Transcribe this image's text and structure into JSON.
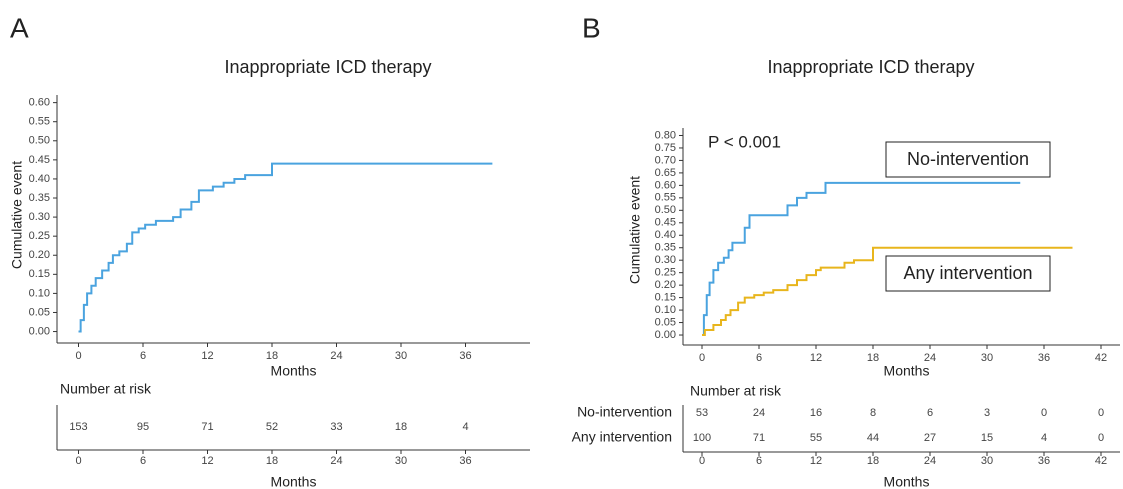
{
  "chart_data": [
    {
      "type": "line",
      "panel": "A",
      "title": "Inappropriate ICD therapy",
      "xlabel": "Months",
      "ylabel": "Cumulative event",
      "xlim": [
        -2,
        42
      ],
      "ylim": [
        -0.03,
        0.62
      ],
      "xticks": [
        0,
        6,
        12,
        18,
        24,
        30,
        36
      ],
      "yticks": [
        {
          "value": 0,
          "label": "0.00"
        },
        {
          "value": 0.05,
          "label": "0.05"
        },
        {
          "value": 0.1,
          "label": "0.10"
        },
        {
          "value": 0.15,
          "label": "0.15"
        },
        {
          "value": 0.2,
          "label": "0.20"
        },
        {
          "value": 0.25,
          "label": "0.25"
        },
        {
          "value": 0.3,
          "label": "0.30"
        },
        {
          "value": 0.35,
          "label": "0.35"
        },
        {
          "value": 0.4,
          "label": "0.40"
        },
        {
          "value": 0.45,
          "label": "0.45"
        },
        {
          "value": 0.5,
          "label": "0.50"
        },
        {
          "value": 0.55,
          "label": "0.55"
        },
        {
          "value": 0.6,
          "label": "0.60"
        }
      ],
      "series": [
        {
          "color": "#4aa3df",
          "x": [
            0,
            0.2,
            0.5,
            0.8,
            1.2,
            1.6,
            2.2,
            2.8,
            3.2,
            3.8,
            4.5,
            5,
            5.6,
            6.2,
            7.2,
            8.8,
            9.5,
            10.5,
            11.2,
            12.5,
            13.5,
            14.5,
            15.5,
            17.5,
            18,
            38.5
          ],
          "values": [
            0,
            0.03,
            0.07,
            0.1,
            0.12,
            0.14,
            0.16,
            0.18,
            0.2,
            0.21,
            0.23,
            0.26,
            0.27,
            0.28,
            0.29,
            0.3,
            0.32,
            0.34,
            0.37,
            0.38,
            0.39,
            0.4,
            0.41,
            0.41,
            0.44,
            0.44
          ]
        }
      ],
      "risk_table": {
        "title": "Number at risk",
        "xlabel": "Months",
        "xticks": [
          0,
          6,
          12,
          18,
          24,
          30,
          36
        ],
        "rows": [
          {
            "values": [
              153,
              95,
              71,
              52,
              33,
              18,
              4
            ]
          }
        ]
      }
    },
    {
      "type": "line",
      "panel": "B",
      "title": "Inappropriate ICD therapy",
      "xlabel": "Months",
      "ylabel": "Cumulative event",
      "annotation": "P < 0.001",
      "xlim": [
        -2,
        44
      ],
      "ylim": [
        -0.04,
        0.83
      ],
      "xticks": [
        0,
        6,
        12,
        18,
        24,
        30,
        36,
        42
      ],
      "yticks": [
        {
          "value": 0,
          "label": "0.00"
        },
        {
          "value": 0.05,
          "label": "0.05"
        },
        {
          "value": 0.1,
          "label": "0.10"
        },
        {
          "value": 0.15,
          "label": "0.15"
        },
        {
          "value": 0.2,
          "label": "0.20"
        },
        {
          "value": 0.25,
          "label": "0.25"
        },
        {
          "value": 0.3,
          "label": "0.30"
        },
        {
          "value": 0.35,
          "label": "0.35"
        },
        {
          "value": 0.4,
          "label": "0.40"
        },
        {
          "value": 0.45,
          "label": "0.45"
        },
        {
          "value": 0.5,
          "label": "0.50"
        },
        {
          "value": 0.55,
          "label": "0.55"
        },
        {
          "value": 0.6,
          "label": "0.60"
        },
        {
          "value": 0.65,
          "label": "0.65"
        },
        {
          "value": 0.7,
          "label": "0.70"
        },
        {
          "value": 0.75,
          "label": "0.75"
        },
        {
          "value": 0.8,
          "label": "0.80"
        }
      ],
      "series": [
        {
          "name": "No-intervention",
          "color": "#4aa3df",
          "x": [
            0,
            0.2,
            0.5,
            0.8,
            1.2,
            1.7,
            2.3,
            2.8,
            3.2,
            4.5,
            5,
            9,
            10,
            11,
            13,
            33.5
          ],
          "values": [
            0,
            0.08,
            0.16,
            0.21,
            0.26,
            0.29,
            0.31,
            0.34,
            0.37,
            0.43,
            0.48,
            0.52,
            0.55,
            0.57,
            0.61,
            0.61
          ]
        },
        {
          "name": "Any intervention",
          "color": "#e8b51c",
          "x": [
            0,
            0.3,
            1.2,
            2,
            2.5,
            3,
            3.8,
            4.5,
            5.5,
            6.5,
            7.5,
            9,
            10,
            11,
            12,
            12.5,
            15,
            16,
            18,
            39
          ],
          "values": [
            0,
            0.02,
            0.04,
            0.06,
            0.08,
            0.1,
            0.13,
            0.15,
            0.16,
            0.17,
            0.18,
            0.2,
            0.22,
            0.24,
            0.26,
            0.27,
            0.29,
            0.3,
            0.35,
            0.35
          ]
        }
      ],
      "risk_table": {
        "title": "Number at risk",
        "xlabel": "Months",
        "xticks": [
          0,
          6,
          12,
          18,
          24,
          30,
          36,
          42
        ],
        "rows": [
          {
            "name": "No-intervention",
            "values": [
              53,
              24,
              16,
              8,
              6,
              3,
              0,
              0
            ]
          },
          {
            "name": "Any intervention",
            "values": [
              100,
              71,
              55,
              44,
              27,
              15,
              4,
              0
            ]
          }
        ]
      }
    }
  ]
}
